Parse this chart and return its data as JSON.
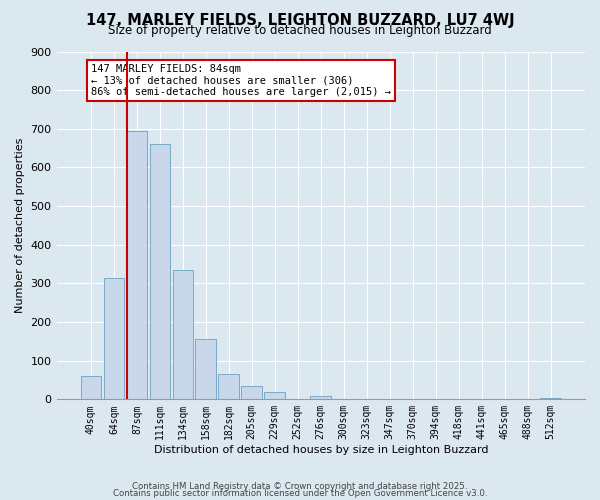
{
  "title": "147, MARLEY FIELDS, LEIGHTON BUZZARD, LU7 4WJ",
  "subtitle": "Size of property relative to detached houses in Leighton Buzzard",
  "xlabel": "Distribution of detached houses by size in Leighton Buzzard",
  "ylabel": "Number of detached properties",
  "bar_labels": [
    "40sqm",
    "64sqm",
    "87sqm",
    "111sqm",
    "134sqm",
    "158sqm",
    "182sqm",
    "205sqm",
    "229sqm",
    "252sqm",
    "276sqm",
    "300sqm",
    "323sqm",
    "347sqm",
    "370sqm",
    "394sqm",
    "418sqm",
    "441sqm",
    "465sqm",
    "488sqm",
    "512sqm"
  ],
  "bar_values": [
    60,
    315,
    695,
    660,
    335,
    155,
    65,
    35,
    18,
    0,
    8,
    0,
    0,
    0,
    0,
    0,
    0,
    0,
    0,
    0,
    3
  ],
  "bar_color": "#c8d8ea",
  "bar_edge_color": "#7aaac8",
  "vline_index": 2,
  "vline_color": "#cc0000",
  "ylim": [
    0,
    900
  ],
  "yticks": [
    0,
    100,
    200,
    300,
    400,
    500,
    600,
    700,
    800,
    900
  ],
  "annotation_title": "147 MARLEY FIELDS: 84sqm",
  "annotation_line1": "← 13% of detached houses are smaller (306)",
  "annotation_line2": "86% of semi-detached houses are larger (2,015) →",
  "footer1": "Contains HM Land Registry data © Crown copyright and database right 2025.",
  "footer2": "Contains public sector information licensed under the Open Government Licence v3.0.",
  "bg_color": "#dce8f0",
  "plot_bg_color": "#dce8f0",
  "grid_color": "#ffffff",
  "title_fontsize": 10.5,
  "subtitle_fontsize": 8.5
}
